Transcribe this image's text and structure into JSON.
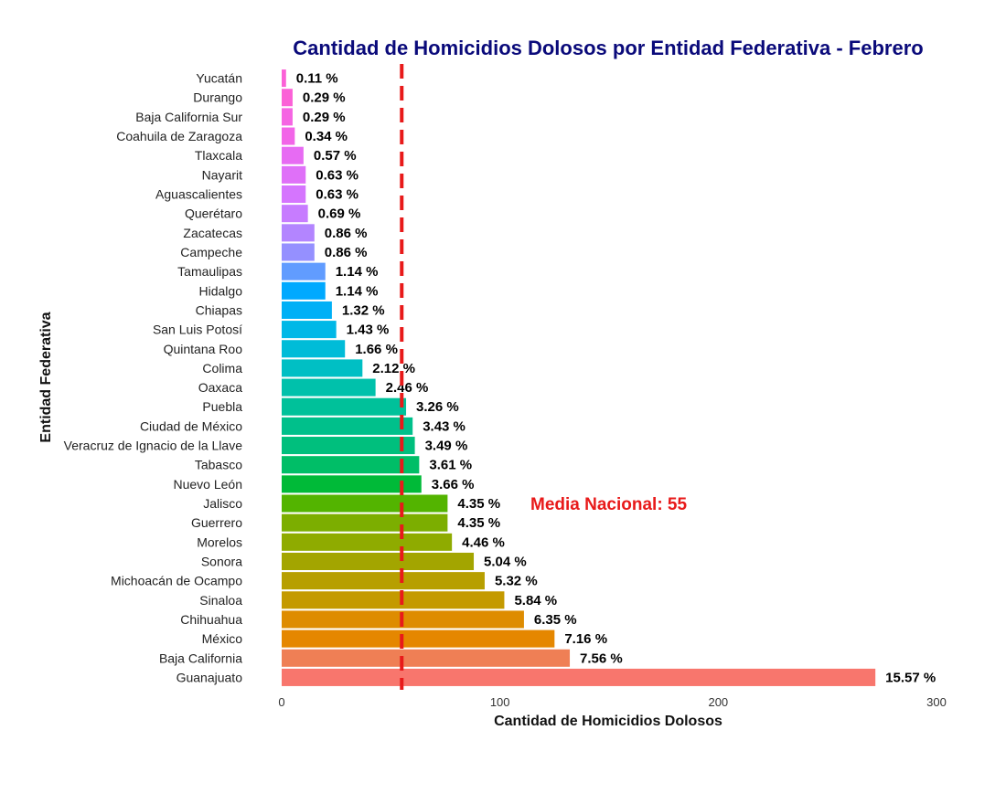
{
  "chart_data": {
    "type": "bar",
    "orientation": "horizontal",
    "title": "Cantidad de Homicidios Dolosos por Entidad Federativa - Febrero",
    "xlabel": "Cantidad de Homicidios Dolosos",
    "ylabel": "Entidad Federativa",
    "xlim": [
      0,
      300
    ],
    "x_ticks": [
      "0",
      "100",
      "200",
      "300"
    ],
    "grid": false,
    "colors": {
      "title": "#0a0a7a",
      "mean_line": "#e81a1a",
      "mean_text": "#e81a1a"
    },
    "mean": {
      "label": "Media Nacional:  55",
      "value": 55
    },
    "categories": [
      "Yucatán",
      "Durango",
      "Baja California Sur",
      "Coahuila de Zaragoza",
      "Tlaxcala",
      "Nayarit",
      "Aguascalientes",
      "Querétaro",
      "Zacatecas",
      "Campeche",
      "Tamaulipas",
      "Hidalgo",
      "Chiapas",
      "San Luis Potosí",
      "Quintana Roo",
      "Colima",
      "Oaxaca",
      "Puebla",
      "Ciudad de México",
      "Veracruz de Ignacio de la Llave",
      "Tabasco",
      "Nuevo León",
      "Jalisco",
      "Guerrero",
      "Morelos",
      "Sonora",
      "Michoacán de Ocampo",
      "Sinaloa",
      "Chihuahua",
      "México",
      "Baja California",
      "Guanajuato"
    ],
    "values": [
      2,
      5,
      5,
      6,
      10,
      11,
      11,
      12,
      15,
      15,
      20,
      20,
      23,
      25,
      29,
      37,
      43,
      57,
      60,
      61,
      63,
      64,
      76,
      76,
      78,
      88,
      93,
      102,
      111,
      125,
      132,
      272
    ],
    "data_labels": [
      "0.11 %",
      "0.29 %",
      "0.29 %",
      "0.34 %",
      "0.57 %",
      "0.63 %",
      "0.63 %",
      "0.69 %",
      "0.86 %",
      "0.86 %",
      "1.14 %",
      "1.14 %",
      "1.32 %",
      "1.43 %",
      "1.66 %",
      "2.12 %",
      "2.46 %",
      "3.26 %",
      "3.43 %",
      "3.49 %",
      "3.61 %",
      "3.66 %",
      "4.35 %",
      "4.35 %",
      "4.46 %",
      "5.04 %",
      "5.32 %",
      "5.84 %",
      "6.35 %",
      "7.16 %",
      "7.56 %",
      "15.57 %"
    ],
    "bar_colors": [
      "#fb61d7",
      "#fb61d7",
      "#f565e3",
      "#f265e8",
      "#e76bf3",
      "#df70f8",
      "#d575fe",
      "#c77cff",
      "#b385ff",
      "#9590ff",
      "#619cff",
      "#00a9ff",
      "#00b0f6",
      "#00b8e7",
      "#00bcd8",
      "#00bfc4",
      "#00c1ab",
      "#00c19a",
      "#00c08b",
      "#00bf7d",
      "#00be67",
      "#00ba38",
      "#53b400",
      "#7cae00",
      "#8fab00",
      "#a3a500",
      "#b79f00",
      "#c49a00",
      "#de8c00",
      "#e58700",
      "#ef7f55",
      "#f8766d"
    ]
  }
}
